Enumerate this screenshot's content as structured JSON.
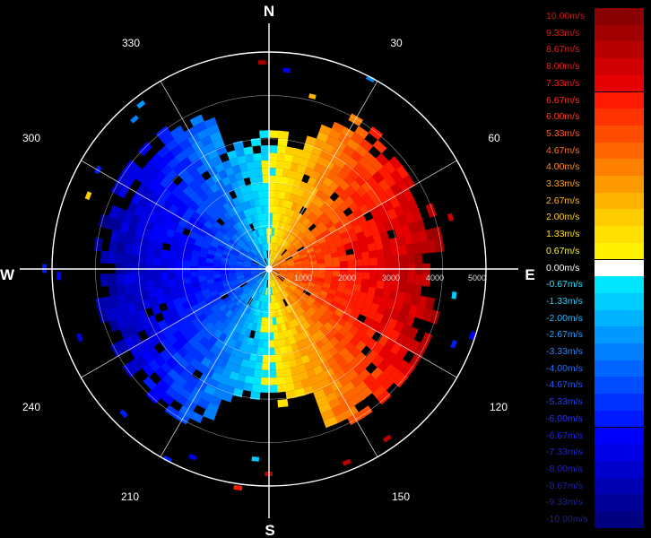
{
  "radar": {
    "compass": {
      "north": "N",
      "east": "E",
      "south": "S",
      "west": "W"
    },
    "azimuth_labels": [
      "30",
      "60",
      "120",
      "150",
      "210",
      "240",
      "300",
      "330"
    ],
    "range_labels": [
      "1000",
      "2000",
      "3000",
      "4000",
      "5000"
    ],
    "ring_colors": {
      "ring": "#ffffff",
      "background": "#000000"
    }
  },
  "legend": {
    "entries": [
      {
        "label": "10.00m/s",
        "color": "#8b0000",
        "text_color": "#c81e1e"
      },
      {
        "label": "9.33m/s",
        "color": "#a00000",
        "text_color": "#d22020"
      },
      {
        "label": "8.67m/s",
        "color": "#b80000",
        "text_color": "#dc2020"
      },
      {
        "label": "8.00m/s",
        "color": "#d00000",
        "text_color": "#e62020"
      },
      {
        "label": "7.33m/s",
        "color": "#e60000",
        "text_color": "#f02020"
      },
      {
        "label": "6.67m/s",
        "color": "#ff1a00",
        "text_color": "#ff3020"
      },
      {
        "label": "6.00m/s",
        "color": "#ff3300",
        "text_color": "#ff4020"
      },
      {
        "label": "5.33m/s",
        "color": "#ff4d00",
        "text_color": "#ff5a20"
      },
      {
        "label": "4.67m/s",
        "color": "#ff6600",
        "text_color": "#ff7020"
      },
      {
        "label": "4.00m/s",
        "color": "#ff8000",
        "text_color": "#ff8820"
      },
      {
        "label": "3.33m/s",
        "color": "#ff9900",
        "text_color": "#ffa020"
      },
      {
        "label": "2.67m/s",
        "color": "#ffb300",
        "text_color": "#ffb820"
      },
      {
        "label": "2.00m/s",
        "color": "#ffcc00",
        "text_color": "#ffd020"
      },
      {
        "label": "1.33m/s",
        "color": "#ffe000",
        "text_color": "#ffe020"
      },
      {
        "label": "0.67m/s",
        "color": "#fff000",
        "text_color": "#fff040"
      },
      {
        "label": "0.00m/s",
        "color": "#ffffff",
        "text_color": "#ffffff"
      },
      {
        "label": "-0.67m/s",
        "color": "#00e5ff",
        "text_color": "#20e0ff"
      },
      {
        "label": "-1.33m/s",
        "color": "#00ccff",
        "text_color": "#20ccff"
      },
      {
        "label": "-2.00m/s",
        "color": "#00b3ff",
        "text_color": "#20b8ff"
      },
      {
        "label": "-2.67m/s",
        "color": "#0099ff",
        "text_color": "#20a0ff"
      },
      {
        "label": "-3.33m/s",
        "color": "#0080ff",
        "text_color": "#2088ff"
      },
      {
        "label": "-4.00m/s",
        "color": "#0066ff",
        "text_color": "#2070ff"
      },
      {
        "label": "-4.67m/s",
        "color": "#004dff",
        "text_color": "#2058ff"
      },
      {
        "label": "-5.33m/s",
        "color": "#0033ff",
        "text_color": "#2040ff"
      },
      {
        "label": "-6.00m/s",
        "color": "#001aff",
        "text_color": "#2030ff"
      },
      {
        "label": "-6.67m/s",
        "color": "#0000ff",
        "text_color": "#2020ff"
      },
      {
        "label": "-7.33m/s",
        "color": "#0000e6",
        "text_color": "#2020e0"
      },
      {
        "label": "-8.00m/s",
        "color": "#0000cc",
        "text_color": "#2020c8"
      },
      {
        "label": "-8.67m/s",
        "color": "#0000b3",
        "text_color": "#2020b0"
      },
      {
        "label": "-9.33m/s",
        "color": "#000099",
        "text_color": "#202098"
      },
      {
        "label": "-10.00m/s",
        "color": "#000080",
        "text_color": "#202080"
      }
    ]
  }
}
